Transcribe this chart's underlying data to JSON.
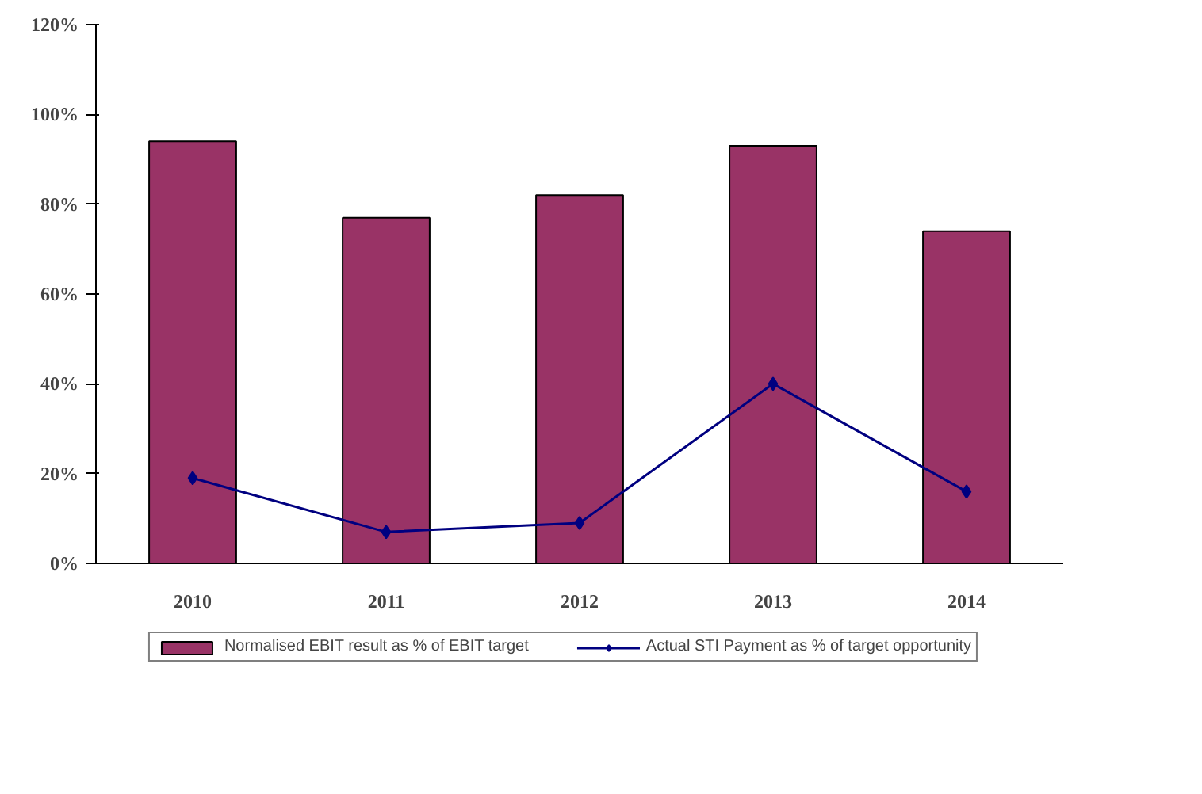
{
  "chart_data": {
    "type": "bar",
    "categories": [
      "2010",
      "2011",
      "2012",
      "2013",
      "2014"
    ],
    "series": [
      {
        "name": "Normalised EBIT result as % of EBIT target",
        "type": "bar",
        "color": "#993366",
        "values": [
          94,
          77,
          82,
          93,
          74
        ]
      },
      {
        "name": "Actual STI Payment as % of target opportunity",
        "type": "line",
        "color": "#000080",
        "values": [
          19,
          7,
          9,
          40,
          16
        ],
        "marker": "diamond"
      }
    ],
    "ylim": [
      0,
      120
    ],
    "yticks": [
      {
        "value": 0,
        "label": "0%"
      },
      {
        "value": 20,
        "label": "20%"
      },
      {
        "value": 40,
        "label": "40%"
      },
      {
        "value": 60,
        "label": "60%"
      },
      {
        "value": 80,
        "label": "80%"
      },
      {
        "value": 100,
        "label": "100%"
      },
      {
        "value": 120,
        "label": "120%"
      }
    ],
    "grid": false,
    "legend": "bottom"
  }
}
